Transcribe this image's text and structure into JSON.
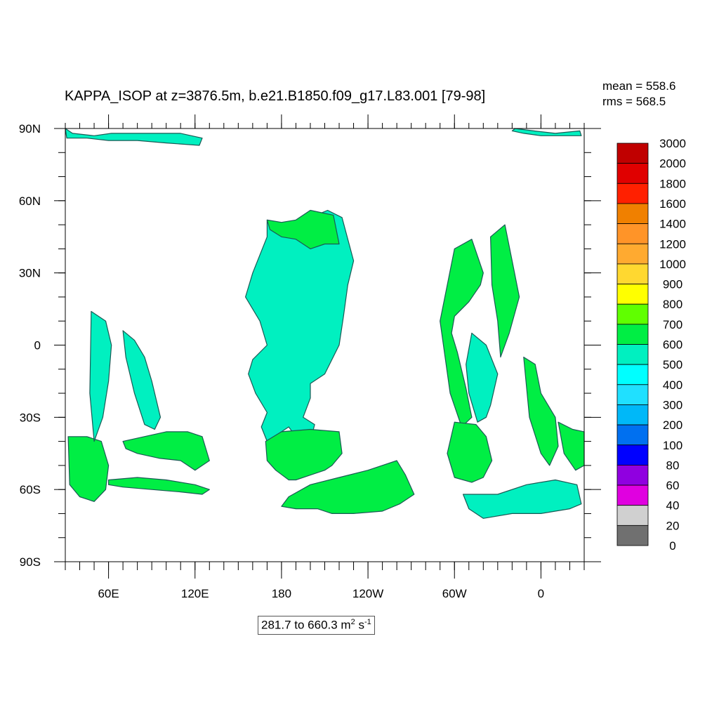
{
  "header": {
    "title": "KAPPA_ISOP at z=3876.5m, b.e21.B1850.f09_g17.L83.001 [79-98]",
    "mean_label": "mean = 558.6",
    "rms_label": "rms = 568.5"
  },
  "footer": {
    "range_prefix": "281.7 to 660.3 m",
    "unit_exp1": "2",
    "unit_mid": " s",
    "unit_exp2": "-1"
  },
  "chart_data": {
    "type": "heatmap",
    "title": "KAPPA_ISOP at z=3876.5m, b.e21.B1850.f09_g17.L83.001 [79-98]",
    "mean": 558.6,
    "rms": 568.5,
    "min": 281.7,
    "max": 660.3,
    "units": "m2 s-1",
    "lon_range": [
      30,
      390
    ],
    "lat_range": [
      -90,
      90
    ],
    "x_ticks": [
      {
        "lon": 60,
        "label": "60E"
      },
      {
        "lon": 120,
        "label": "120E"
      },
      {
        "lon": 180,
        "label": "180"
      },
      {
        "lon": 240,
        "label": "120W"
      },
      {
        "lon": 300,
        "label": "60W"
      },
      {
        "lon": 360,
        "label": "0"
      }
    ],
    "y_ticks": [
      {
        "lat": 90,
        "label": "90N"
      },
      {
        "lat": 60,
        "label": "60N"
      },
      {
        "lat": 30,
        "label": "30N"
      },
      {
        "lat": 0,
        "label": "0"
      },
      {
        "lat": -30,
        "label": "30S"
      },
      {
        "lat": -60,
        "label": "60S"
      },
      {
        "lat": -90,
        "label": "90S"
      }
    ],
    "colorbar": {
      "labels": [
        "3000",
        "2000",
        "1800",
        "1600",
        "1400",
        "1200",
        "1000",
        "900",
        "800",
        "700",
        "600",
        "500",
        "400",
        "300",
        "200",
        "100",
        "80",
        "60",
        "40",
        "20",
        "0"
      ],
      "colors": [
        "#c00000",
        "#e00000",
        "#ff2000",
        "#f08000",
        "#ff9428",
        "#ffaa30",
        "#ffd830",
        "#ffff00",
        "#60ff00",
        "#00ee44",
        "#00f0c0",
        "#00ffff",
        "#20e0ff",
        "#00b8f8",
        "#0070f0",
        "#0000ff",
        "#9000e0",
        "#e000e0",
        "#d0d0d0",
        "#707070"
      ]
    },
    "regions": [
      {
        "name": "arctic-west",
        "color": "#00f0c0",
        "lon": [
          30,
          35,
          50,
          62,
          80,
          110,
          125,
          123,
          100,
          80,
          60,
          45,
          31,
          30
        ],
        "lat": [
          90,
          88,
          87,
          88,
          88,
          88,
          86,
          83,
          84,
          85,
          85,
          86,
          86,
          90
        ]
      },
      {
        "name": "arctic-east",
        "color": "#00f0c0",
        "lon": [
          342,
          355,
          370,
          387,
          388,
          375,
          360,
          348,
          340
        ],
        "lat": [
          90,
          89,
          88,
          89,
          87,
          87,
          87,
          88,
          89
        ]
      },
      {
        "name": "north-pacific",
        "color": "#00f0c0",
        "lon": [
          170,
          180,
          200,
          212,
          222,
          230,
          226,
          223,
          220,
          210,
          200,
          200,
          195,
          203,
          200,
          194,
          190,
          185,
          180,
          170,
          166,
          170,
          162,
          157,
          160,
          170,
          165,
          155,
          160,
          170
        ],
        "lat": [
          52,
          50,
          53,
          56,
          53,
          35,
          25,
          12,
          0,
          -12,
          -16,
          -22,
          -30,
          -33,
          -40,
          -42,
          -38,
          -34,
          -36,
          -40,
          -34,
          -28,
          -20,
          -12,
          -6,
          0,
          10,
          20,
          30,
          45
        ]
      },
      {
        "name": "south-pacific",
        "color": "#00ee44",
        "lon": [
          180,
          200,
          220,
          222,
          215,
          210,
          200,
          190,
          185,
          176,
          170,
          169
        ],
        "lat": [
          -36,
          -35,
          -36,
          -45,
          -50,
          -52,
          -54,
          -56,
          -56,
          -52,
          -48,
          -40
        ]
      },
      {
        "name": "southern-ocean-pac",
        "color": "#00ee44",
        "lon": [
          185,
          200,
          220,
          240,
          260,
          266,
          272,
          262,
          250,
          230,
          215,
          205,
          190,
          180
        ],
        "lat": [
          -63,
          -58,
          -55,
          -52,
          -48,
          -54,
          -62,
          -66,
          -69,
          -70,
          -70,
          -68,
          -68,
          -67
        ]
      },
      {
        "name": "north-pacific-green",
        "color": "#00ee44",
        "lon": [
          170,
          180,
          190,
          200,
          208,
          216,
          220,
          210,
          200,
          190,
          180,
          172
        ],
        "lat": [
          52,
          51,
          52,
          56,
          55,
          54,
          42,
          42,
          40,
          44,
          45,
          48
        ]
      },
      {
        "name": "north-atlantic",
        "color": "#00ee44",
        "lon": [
          300,
          312,
          320,
          318,
          310,
          300,
          298,
          302,
          308,
          312,
          305,
          297,
          290
        ],
        "lat": [
          40,
          44,
          30,
          25,
          18,
          12,
          5,
          -3,
          -18,
          -30,
          -34,
          -20,
          10
        ]
      },
      {
        "name": "north-atlantic-2",
        "color": "#00ee44",
        "lon": [
          325,
          335,
          340,
          345,
          338,
          332,
          330,
          326
        ],
        "lat": [
          45,
          50,
          35,
          20,
          5,
          -5,
          10,
          25
        ]
      },
      {
        "name": "atlantic-tropics",
        "color": "#00f0c0",
        "lon": [
          312,
          322,
          330,
          325,
          322,
          316,
          310,
          308
        ],
        "lat": [
          5,
          0,
          -12,
          -25,
          -30,
          -32,
          -20,
          -8
        ]
      },
      {
        "name": "south-atlantic",
        "color": "#00ee44",
        "lon": [
          300,
          315,
          322,
          326,
          320,
          312,
          300,
          295
        ],
        "lat": [
          -32,
          -33,
          -38,
          -48,
          -55,
          -57,
          -55,
          -45
        ]
      },
      {
        "name": "southern-ocean-atl",
        "color": "#00f0c0",
        "lon": [
          306,
          330,
          350,
          370,
          385,
          388,
          380,
          360,
          340,
          320,
          310
        ],
        "lat": [
          -62,
          -62,
          -58,
          -56,
          -58,
          -66,
          -68,
          -70,
          -70,
          -72,
          -68
        ]
      },
      {
        "name": "indian-south",
        "color": "#00ee44",
        "lon": [
          70,
          100,
          115,
          125,
          130,
          120,
          110,
          95,
          80,
          72
        ],
        "lat": [
          -40,
          -36,
          -36,
          -38,
          -48,
          -52,
          -48,
          -47,
          -45,
          -43
        ]
      },
      {
        "name": "indian-south-2",
        "color": "#00ee44",
        "lon": [
          60,
          80,
          100,
          120,
          130,
          125,
          110,
          90,
          70,
          60
        ],
        "lat": [
          -56,
          -55,
          -56,
          -58,
          -60,
          -62,
          -61,
          -60,
          -59,
          -58
        ]
      },
      {
        "name": "indian-west",
        "color": "#00ee44",
        "lon": [
          32,
          45,
          55,
          60,
          58,
          50,
          40,
          33
        ],
        "lat": [
          -38,
          -38,
          -40,
          -50,
          -60,
          -65,
          -63,
          -58
        ]
      },
      {
        "name": "indian-tropics",
        "color": "#00f0c0",
        "lon": [
          48,
          58,
          62,
          60,
          56,
          50,
          47
        ],
        "lat": [
          14,
          10,
          0,
          -15,
          -30,
          -40,
          -20
        ]
      },
      {
        "name": "indian-central",
        "color": "#00f0c0",
        "lon": [
          70,
          78,
          85,
          90,
          96,
          92,
          85,
          78,
          72
        ],
        "lat": [
          6,
          2,
          -5,
          -15,
          -30,
          -35,
          -33,
          -20,
          -5
        ]
      },
      {
        "name": "atlantic-east-south",
        "color": "#00ee44",
        "lon": [
          348,
          356,
          360,
          370,
          372,
          366,
          360,
          352
        ],
        "lat": [
          -5,
          -8,
          -20,
          -30,
          -42,
          -50,
          -45,
          -30
        ]
      },
      {
        "name": "atlantic-far-east",
        "color": "#00ee44",
        "lon": [
          372,
          382,
          390,
          390,
          384,
          376
        ],
        "lat": [
          -32,
          -35,
          -36,
          -50,
          -52,
          -45
        ]
      }
    ]
  }
}
